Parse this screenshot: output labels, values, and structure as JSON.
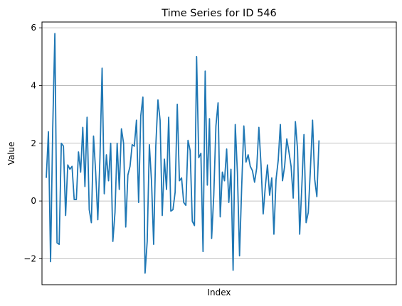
{
  "chart_data": {
    "type": "line",
    "title": "Time Series for ID 546",
    "xlabel": "Index",
    "ylabel": "Value",
    "xlim": [
      -2,
      163
    ],
    "ylim": [
      -2.9,
      6.2
    ],
    "yticks": [
      -2,
      0,
      2,
      4,
      6
    ],
    "ytick_labels": [
      "−2",
      "0",
      "2",
      "4",
      "6"
    ],
    "grid": "y",
    "line_color": "#1f77b4",
    "series": [
      {
        "name": "Value",
        "values": [
          0.8,
          2.4,
          -2.1,
          2.5,
          5.8,
          -1.45,
          -1.5,
          2.0,
          1.9,
          -0.5,
          1.25,
          1.1,
          1.2,
          0.05,
          0.05,
          1.7,
          1.0,
          2.55,
          0.5,
          2.9,
          -0.3,
          -0.75,
          2.25,
          1.0,
          -0.65,
          1.5,
          4.6,
          0.25,
          1.6,
          0.7,
          2.0,
          -1.4,
          -0.4,
          2.0,
          0.4,
          2.5,
          2.0,
          -0.9,
          0.9,
          1.2,
          1.95,
          1.9,
          2.8,
          -0.05,
          2.95,
          3.6,
          -2.5,
          -1.4,
          1.95,
          0.7,
          -1.5,
          1.9,
          3.5,
          2.8,
          -0.5,
          1.45,
          0.4,
          2.9,
          -0.35,
          -0.3,
          0.3,
          3.35,
          0.7,
          0.8,
          -0.05,
          -0.15,
          2.1,
          1.75,
          -0.7,
          -0.85,
          5.0,
          1.5,
          1.65,
          -1.75,
          4.5,
          0.55,
          2.85,
          -1.3,
          0.2,
          2.6,
          3.4,
          -0.55,
          1.0,
          0.7,
          1.8,
          -0.05,
          1.1,
          -2.4,
          2.65,
          1.0,
          -1.9,
          0.5,
          2.6,
          1.35,
          1.6,
          1.2,
          1.05,
          0.65,
          1.15,
          2.55,
          1.25,
          -0.45,
          0.5,
          1.25,
          0.2,
          0.8,
          -1.15,
          0.75,
          1.4,
          2.65,
          0.7,
          1.2,
          2.15,
          1.7,
          1.2,
          0.1,
          2.75,
          1.8,
          -1.15,
          0.5,
          2.3,
          -0.75,
          -0.4,
          1.1,
          2.8,
          0.75,
          0.15,
          2.1
        ]
      }
    ]
  }
}
